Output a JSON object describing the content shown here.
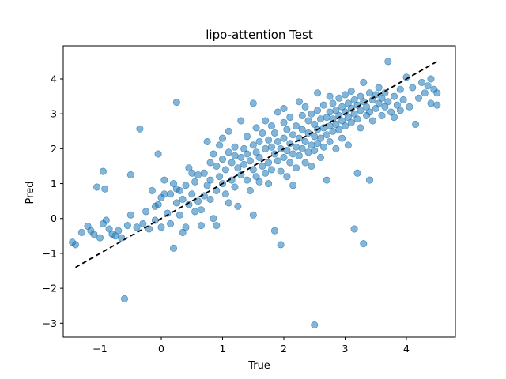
{
  "chart_data": {
    "type": "scatter",
    "title": "lipo-attention Test",
    "xlabel": "True",
    "ylabel": "Pred",
    "xlim": [
      -1.6,
      4.8
    ],
    "ylim": [
      -3.4,
      4.95
    ],
    "xticks": [
      -1,
      0,
      1,
      2,
      3,
      4
    ],
    "xtick_labels": [
      "−1",
      "0",
      "1",
      "2",
      "3",
      "4"
    ],
    "yticks": [
      -3,
      -2,
      -1,
      0,
      1,
      2,
      3,
      4
    ],
    "ytick_labels": [
      "−3",
      "−2",
      "−1",
      "0",
      "1",
      "2",
      "3",
      "4"
    ],
    "grid": false,
    "legend": false,
    "point_color": "#1f77b4",
    "point_alpha": 0.55,
    "reference_line": {
      "style": "dashed",
      "color": "#000000",
      "x": [
        -1.4,
        4.5
      ],
      "y": [
        -1.4,
        4.5
      ]
    },
    "points": [
      [
        -1.45,
        -0.68
      ],
      [
        -1.4,
        -0.75
      ],
      [
        -1.3,
        -0.4
      ],
      [
        -1.2,
        -0.22
      ],
      [
        -1.15,
        -0.35
      ],
      [
        -1.1,
        -0.45
      ],
      [
        -1.05,
        0.9
      ],
      [
        -1.0,
        -0.55
      ],
      [
        -0.95,
        1.35
      ],
      [
        -0.95,
        -0.15
      ],
      [
        -0.92,
        0.85
      ],
      [
        -0.9,
        -0.05
      ],
      [
        -0.85,
        -0.3
      ],
      [
        -0.8,
        -0.45
      ],
      [
        -0.75,
        -0.5
      ],
      [
        -0.7,
        -0.35
      ],
      [
        -0.65,
        -0.55
      ],
      [
        -0.6,
        -2.3
      ],
      [
        -0.55,
        -0.2
      ],
      [
        -0.5,
        0.1
      ],
      [
        -0.5,
        1.25
      ],
      [
        -0.4,
        -0.25
      ],
      [
        -0.35,
        2.57
      ],
      [
        -0.3,
        -0.15
      ],
      [
        -0.25,
        0.2
      ],
      [
        -0.2,
        -0.3
      ],
      [
        -0.15,
        0.8
      ],
      [
        -0.1,
        0.35
      ],
      [
        -0.1,
        -0.05
      ],
      [
        -0.05,
        1.85
      ],
      [
        -0.05,
        0.4
      ],
      [
        0.0,
        -0.25
      ],
      [
        0.0,
        0.6
      ],
      [
        0.05,
        0.7
      ],
      [
        0.05,
        1.1
      ],
      [
        0.1,
        0.15
      ],
      [
        0.15,
        -0.15
      ],
      [
        0.15,
        0.7
      ],
      [
        0.2,
        1.0
      ],
      [
        0.2,
        -0.85
      ],
      [
        0.25,
        0.45
      ],
      [
        0.25,
        0.85
      ],
      [
        0.25,
        3.33
      ],
      [
        0.3,
        0.8
      ],
      [
        0.3,
        0.1
      ],
      [
        0.35,
        0.55
      ],
      [
        0.35,
        -0.4
      ],
      [
        0.4,
        0.95
      ],
      [
        0.4,
        -0.25
      ],
      [
        0.45,
        1.45
      ],
      [
        0.45,
        0.4
      ],
      [
        0.5,
        1.3
      ],
      [
        0.5,
        0.7
      ],
      [
        0.55,
        0.2
      ],
      [
        0.55,
        1.05
      ],
      [
        0.6,
        1.25
      ],
      [
        0.6,
        0.5
      ],
      [
        0.65,
        0.25
      ],
      [
        0.65,
        -0.2
      ],
      [
        0.7,
        0.65
      ],
      [
        0.7,
        1.3
      ],
      [
        0.75,
        2.2
      ],
      [
        0.75,
        0.95
      ],
      [
        0.8,
        1.1
      ],
      [
        0.8,
        1.6
      ],
      [
        0.8,
        0.55
      ],
      [
        0.85,
        0.0
      ],
      [
        0.85,
        1.85
      ],
      [
        0.9,
        1.5
      ],
      [
        0.9,
        0.8
      ],
      [
        0.9,
        -0.2
      ],
      [
        0.95,
        2.1
      ],
      [
        0.95,
        1.2
      ],
      [
        1.0,
        1.7
      ],
      [
        1.0,
        1.0
      ],
      [
        1.0,
        2.3
      ],
      [
        1.05,
        0.7
      ],
      [
        1.05,
        1.4
      ],
      [
        1.1,
        1.9
      ],
      [
        1.1,
        2.5
      ],
      [
        1.1,
        0.45
      ],
      [
        1.15,
        1.6
      ],
      [
        1.15,
        1.1
      ],
      [
        1.2,
        1.8
      ],
      [
        1.2,
        0.9
      ],
      [
        1.2,
        2.05
      ],
      [
        1.25,
        1.45
      ],
      [
        1.25,
        0.35
      ],
      [
        1.3,
        1.75
      ],
      [
        1.3,
        2.8
      ],
      [
        1.3,
        1.25
      ],
      [
        1.35,
        2.0
      ],
      [
        1.35,
        1.55
      ],
      [
        1.4,
        1.85
      ],
      [
        1.4,
        1.1
      ],
      [
        1.4,
        2.35
      ],
      [
        1.45,
        1.65
      ],
      [
        1.45,
        0.8
      ],
      [
        1.5,
        2.1
      ],
      [
        1.5,
        1.4
      ],
      [
        1.5,
        3.3
      ],
      [
        1.5,
        0.1
      ],
      [
        1.55,
        1.9
      ],
      [
        1.55,
        2.6
      ],
      [
        1.55,
        1.2
      ],
      [
        1.6,
        2.2
      ],
      [
        1.6,
        1.75
      ],
      [
        1.6,
        1.05
      ],
      [
        1.65,
        2.45
      ],
      [
        1.65,
        1.5
      ],
      [
        1.7,
        2.0
      ],
      [
        1.7,
        1.3
      ],
      [
        1.7,
        2.8
      ],
      [
        1.75,
        2.25
      ],
      [
        1.75,
        1.6
      ],
      [
        1.75,
        1.0
      ],
      [
        1.8,
        2.05
      ],
      [
        1.8,
        2.65
      ],
      [
        1.8,
        1.4
      ],
      [
        1.85,
        1.85
      ],
      [
        1.85,
        2.45
      ],
      [
        1.85,
        -0.35
      ],
      [
        1.9,
        2.2
      ],
      [
        1.9,
        1.65
      ],
      [
        1.9,
        3.05
      ],
      [
        1.95,
        -0.75
      ],
      [
        1.95,
        2.0
      ],
      [
        1.95,
        1.35
      ],
      [
        2.0,
        2.3
      ],
      [
        2.0,
        1.75
      ],
      [
        2.0,
        2.75
      ],
      [
        2.0,
        3.15
      ],
      [
        2.05,
        1.95
      ],
      [
        2.05,
        2.55
      ],
      [
        2.05,
        1.2
      ],
      [
        2.1,
        2.15
      ],
      [
        2.1,
        2.9
      ],
      [
        2.1,
        1.6
      ],
      [
        2.15,
        2.4
      ],
      [
        2.15,
        1.85
      ],
      [
        2.15,
        0.95
      ],
      [
        2.2,
        2.65
      ],
      [
        2.2,
        2.05
      ],
      [
        2.2,
        1.45
      ],
      [
        2.25,
        3.35
      ],
      [
        2.25,
        2.3
      ],
      [
        2.25,
        1.8
      ],
      [
        2.3,
        2.55
      ],
      [
        2.3,
        2.0
      ],
      [
        2.3,
        2.95
      ],
      [
        2.35,
        2.2
      ],
      [
        2.35,
        1.6
      ],
      [
        2.35,
        3.2
      ],
      [
        2.4,
        2.45
      ],
      [
        2.4,
        1.9
      ],
      [
        2.4,
        2.8
      ],
      [
        2.45,
        2.1
      ],
      [
        2.45,
        3.0
      ],
      [
        2.45,
        1.5
      ],
      [
        2.5,
        2.35
      ],
      [
        2.5,
        2.7
      ],
      [
        2.5,
        1.95
      ],
      [
        2.5,
        -3.05
      ],
      [
        2.55,
        2.55
      ],
      [
        2.55,
        3.1
      ],
      [
        2.55,
        2.15
      ],
      [
        2.55,
        3.6
      ],
      [
        2.6,
        2.85
      ],
      [
        2.6,
        2.3
      ],
      [
        2.6,
        1.75
      ],
      [
        2.65,
        2.6
      ],
      [
        2.65,
        3.25
      ],
      [
        2.65,
        2.05
      ],
      [
        2.7,
        2.9
      ],
      [
        2.7,
        2.4
      ],
      [
        2.7,
        1.1
      ],
      [
        2.75,
        3.05
      ],
      [
        2.75,
        2.65
      ],
      [
        2.75,
        2.2
      ],
      [
        2.75,
        3.5
      ],
      [
        2.8,
        2.85
      ],
      [
        2.8,
        2.5
      ],
      [
        2.8,
        3.3
      ],
      [
        2.85,
        3.1
      ],
      [
        2.85,
        2.7
      ],
      [
        2.85,
        2.0
      ],
      [
        2.9,
        2.95
      ],
      [
        2.9,
        3.45
      ],
      [
        2.9,
        2.55
      ],
      [
        2.95,
        3.2
      ],
      [
        2.95,
        2.8
      ],
      [
        2.95,
        2.3
      ],
      [
        3.0,
        3.05
      ],
      [
        3.0,
        3.55
      ],
      [
        3.0,
        2.65
      ],
      [
        3.05,
        3.3
      ],
      [
        3.05,
        2.9
      ],
      [
        3.05,
        2.1
      ],
      [
        3.1,
        3.15
      ],
      [
        3.1,
        2.75
      ],
      [
        3.1,
        3.65
      ],
      [
        3.15,
        3.4
      ],
      [
        3.15,
        3.0
      ],
      [
        3.15,
        -0.3
      ],
      [
        3.2,
        3.25
      ],
      [
        3.2,
        2.85
      ],
      [
        3.2,
        1.3
      ],
      [
        3.25,
        3.5
      ],
      [
        3.25,
        3.1
      ],
      [
        3.25,
        2.6
      ],
      [
        3.3,
        3.35
      ],
      [
        3.3,
        3.9
      ],
      [
        3.3,
        -0.72
      ],
      [
        3.35,
        3.2
      ],
      [
        3.35,
        2.95
      ],
      [
        3.4,
        3.6
      ],
      [
        3.4,
        3.05
      ],
      [
        3.4,
        1.1
      ],
      [
        3.45,
        3.4
      ],
      [
        3.45,
        2.8
      ],
      [
        3.5,
        3.55
      ],
      [
        3.5,
        3.15
      ],
      [
        3.55,
        3.3
      ],
      [
        3.55,
        3.75
      ],
      [
        3.6,
        3.45
      ],
      [
        3.6,
        2.95
      ],
      [
        3.65,
        3.6
      ],
      [
        3.65,
        3.2
      ],
      [
        3.7,
        4.5
      ],
      [
        3.7,
        3.35
      ],
      [
        3.75,
        3.05
      ],
      [
        3.8,
        3.5
      ],
      [
        3.85,
        3.25
      ],
      [
        3.9,
        3.7
      ],
      [
        3.95,
        3.4
      ],
      [
        4.0,
        4.05
      ],
      [
        4.05,
        3.2
      ],
      [
        4.1,
        3.75
      ],
      [
        4.15,
        2.7
      ],
      [
        4.2,
        3.45
      ],
      [
        4.25,
        3.9
      ],
      [
        4.3,
        3.6
      ],
      [
        4.35,
        3.8
      ],
      [
        4.4,
        3.3
      ],
      [
        4.45,
        3.7
      ],
      [
        4.5,
        3.6
      ],
      [
        4.5,
        3.25
      ],
      [
        4.4,
        4.0
      ],
      [
        3.9,
        3.1
      ],
      [
        3.8,
        2.9
      ]
    ]
  }
}
